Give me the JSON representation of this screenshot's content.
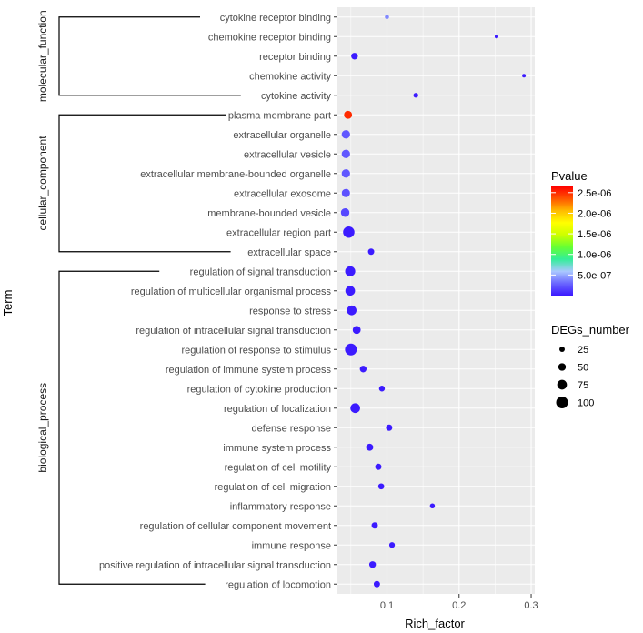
{
  "chart_data": {
    "type": "scatter",
    "title": "",
    "xlabel": "Rich_factor",
    "ylabel": "Term",
    "xlim": [
      0.03,
      0.305
    ],
    "x_ticks": [
      0.1,
      0.2,
      0.3
    ],
    "x_tick_labels": [
      "0.1",
      "0.2",
      "0.3"
    ],
    "points": [
      {
        "term": "cytokine receptor binding",
        "group": "molecular_function",
        "rich_factor": 0.1,
        "pvalue": 4e-07,
        "degs": 10
      },
      {
        "term": "chemokine receptor binding",
        "group": "molecular_function",
        "rich_factor": 0.252,
        "pvalue": 1e-08,
        "degs": 5
      },
      {
        "term": "receptor binding",
        "group": "molecular_function",
        "rich_factor": 0.055,
        "pvalue": 1e-08,
        "degs": 40
      },
      {
        "term": "chemokine activity",
        "group": "molecular_function",
        "rich_factor": 0.29,
        "pvalue": 1e-08,
        "degs": 4
      },
      {
        "term": "cytokine activity",
        "group": "molecular_function",
        "rich_factor": 0.14,
        "pvalue": 1e-08,
        "degs": 18
      },
      {
        "term": "plasma membrane part",
        "group": "cellular_component",
        "rich_factor": 0.046,
        "pvalue": 2.5e-06,
        "degs": 55
      },
      {
        "term": "extracellular organelle",
        "group": "cellular_component",
        "rich_factor": 0.043,
        "pvalue": 2.4e-07,
        "degs": 60
      },
      {
        "term": "extracellular vesicle",
        "group": "cellular_component",
        "rich_factor": 0.043,
        "pvalue": 2.4e-07,
        "degs": 60
      },
      {
        "term": "extracellular membrane-bounded organelle",
        "group": "cellular_component",
        "rich_factor": 0.043,
        "pvalue": 2.4e-07,
        "degs": 60
      },
      {
        "term": "extracellular exosome",
        "group": "cellular_component",
        "rich_factor": 0.043,
        "pvalue": 2.2e-07,
        "degs": 58
      },
      {
        "term": "membrane-bounded vesicle",
        "group": "cellular_component",
        "rich_factor": 0.042,
        "pvalue": 1.8e-07,
        "degs": 62
      },
      {
        "term": "extracellular region part",
        "group": "cellular_component",
        "rich_factor": 0.047,
        "pvalue": 1e-08,
        "degs": 95
      },
      {
        "term": "extracellular space",
        "group": "cellular_component",
        "rich_factor": 0.078,
        "pvalue": 1e-08,
        "degs": 35
      },
      {
        "term": "regulation of signal transduction",
        "group": "biological_process",
        "rich_factor": 0.049,
        "pvalue": 1e-08,
        "degs": 80
      },
      {
        "term": "regulation of multicellular organismal process",
        "group": "biological_process",
        "rich_factor": 0.049,
        "pvalue": 1e-08,
        "degs": 75
      },
      {
        "term": "response to stress",
        "group": "biological_process",
        "rich_factor": 0.051,
        "pvalue": 1e-08,
        "degs": 75
      },
      {
        "term": "regulation of intracellular signal transduction",
        "group": "biological_process",
        "rich_factor": 0.058,
        "pvalue": 1e-08,
        "degs": 55
      },
      {
        "term": "regulation of response to stimulus",
        "group": "biological_process",
        "rich_factor": 0.05,
        "pvalue": 1e-08,
        "degs": 100
      },
      {
        "term": "regulation of immune system process",
        "group": "biological_process",
        "rich_factor": 0.067,
        "pvalue": 1e-08,
        "degs": 40
      },
      {
        "term": "regulation of cytokine production",
        "group": "biological_process",
        "rich_factor": 0.093,
        "pvalue": 1e-08,
        "degs": 30
      },
      {
        "term": "regulation of localization",
        "group": "biological_process",
        "rich_factor": 0.056,
        "pvalue": 1e-08,
        "degs": 75
      },
      {
        "term": "defense response",
        "group": "biological_process",
        "rich_factor": 0.103,
        "pvalue": 1e-08,
        "degs": 35
      },
      {
        "term": "immune system process",
        "group": "biological_process",
        "rich_factor": 0.076,
        "pvalue": 1e-08,
        "degs": 45
      },
      {
        "term": "regulation of cell motility",
        "group": "biological_process",
        "rich_factor": 0.088,
        "pvalue": 1e-08,
        "degs": 35
      },
      {
        "term": "regulation of cell migration",
        "group": "biological_process",
        "rich_factor": 0.092,
        "pvalue": 1e-08,
        "degs": 32
      },
      {
        "term": "inflammatory response",
        "group": "biological_process",
        "rich_factor": 0.163,
        "pvalue": 1e-08,
        "degs": 20
      },
      {
        "term": "regulation of cellular component movement",
        "group": "biological_process",
        "rich_factor": 0.083,
        "pvalue": 1e-08,
        "degs": 35
      },
      {
        "term": "immune response",
        "group": "biological_process",
        "rich_factor": 0.107,
        "pvalue": 1e-08,
        "degs": 28
      },
      {
        "term": "positive regulation of intracellular signal transduction",
        "group": "biological_process",
        "rich_factor": 0.08,
        "pvalue": 1e-08,
        "degs": 40
      },
      {
        "term": "regulation of locomotion",
        "group": "biological_process",
        "rich_factor": 0.086,
        "pvalue": 1e-08,
        "degs": 35
      }
    ],
    "groups": [
      {
        "name": "molecular_function",
        "first": "cytokine receptor binding",
        "last": "cytokine activity"
      },
      {
        "name": "cellular_component",
        "first": "plasma membrane part",
        "last": "extracellular space"
      },
      {
        "name": "biological_process",
        "first": "regulation of signal transduction",
        "last": "regulation of locomotion"
      }
    ],
    "color_legend": {
      "title": "Pvalue",
      "min": 0,
      "max": 2.65e-06,
      "breaks": [
        5e-07,
        1e-06,
        1.5e-06,
        2e-06,
        2.5e-06
      ],
      "labels": [
        "5.0e-07",
        "1.0e-06",
        "1.5e-06",
        "2.0e-06",
        "2.5e-06"
      ],
      "colors": [
        "#3a18ff",
        "#6a66ff",
        "#aac8ff",
        "#33ee99",
        "#66ff33",
        "#ccff00",
        "#ffff00",
        "#ffbb00",
        "#ff5500",
        "#ff0000"
      ]
    },
    "size_legend": {
      "title": "DEGs_number",
      "values": [
        25,
        50,
        75,
        100
      ],
      "labels": [
        "25",
        "50",
        "75",
        "100"
      ]
    },
    "size_range_degs": [
      4,
      100
    ],
    "legend_position": "right",
    "grid": true,
    "panel_color": "#ebebeb",
    "grid_color": "#ffffff"
  }
}
